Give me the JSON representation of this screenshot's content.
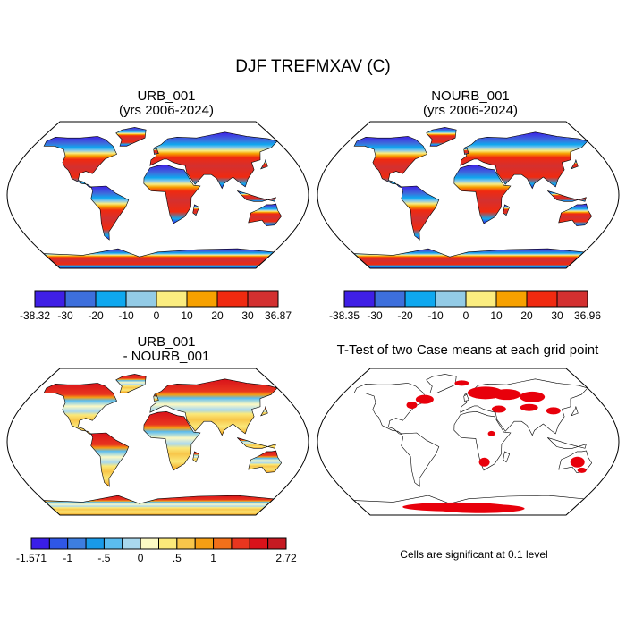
{
  "title": "DJF TREFMXAV (C)",
  "panels": [
    {
      "id": "p1",
      "title_line1": "URB_001",
      "title_line2": "(yrs 2006-2024)",
      "colorbar": {
        "min_label": "-38.32",
        "max_label": "36.87",
        "ticks": [
          "-30",
          "-20",
          "-10",
          "0",
          "10",
          "20",
          "30"
        ],
        "colors": [
          "#3f1fe6",
          "#3d6fdc",
          "#0fa8ef",
          "#93cbe6",
          "#fbed80",
          "#f7a100",
          "#f02a10",
          "#d33030"
        ]
      }
    },
    {
      "id": "p2",
      "title_line1": "NOURB_001",
      "title_line2": "(yrs 2006-2024)",
      "colorbar": {
        "min_label": "-38.35",
        "max_label": "36.96",
        "ticks": [
          "-30",
          "-20",
          "-10",
          "0",
          "10",
          "20",
          "30"
        ],
        "colors": [
          "#3f1fe6",
          "#3d6fdc",
          "#0fa8ef",
          "#93cbe6",
          "#fbed80",
          "#f7a100",
          "#f02a10",
          "#d33030"
        ]
      }
    },
    {
      "id": "p3",
      "title_line1": "URB_001",
      "title_line2": "- NOURB_001",
      "colorbar": {
        "min_label": "-1.571",
        "max_label": "2.72",
        "ticks": [
          "-1",
          "-.5",
          "0",
          ".5",
          "1"
        ],
        "colors": [
          "#3a1ee8",
          "#2f57e6",
          "#3d7ee0",
          "#199ae8",
          "#5bbcef",
          "#a9d8ee",
          "#fcf9c4",
          "#fbe97a",
          "#f8c64a",
          "#f59e14",
          "#f2701a",
          "#e8361f",
          "#d9121a",
          "#c61a22"
        ]
      }
    },
    {
      "id": "p4",
      "title": "T-Test of two Case means at each grid point"
    }
  ],
  "significance_note": "Cells are significant at 0.1 level"
}
